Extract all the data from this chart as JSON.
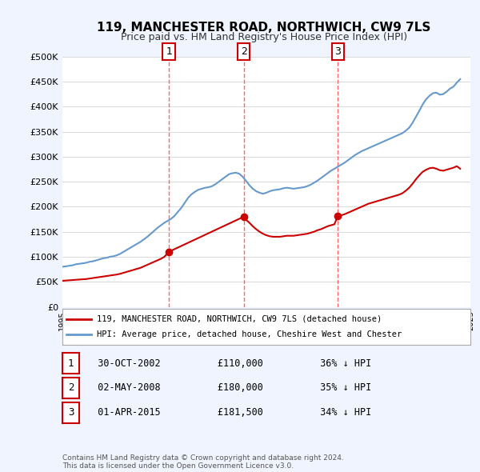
{
  "title": "119, MANCHESTER ROAD, NORTHWICH, CW9 7LS",
  "subtitle": "Price paid vs. HM Land Registry's House Price Index (HPI)",
  "footer": "Contains HM Land Registry data © Crown copyright and database right 2024.\nThis data is licensed under the Open Government Licence v3.0.",
  "legend_label_red": "119, MANCHESTER ROAD, NORTHWICH, CW9 7LS (detached house)",
  "legend_label_blue": "HPI: Average price, detached house, Cheshire West and Chester",
  "transactions": [
    {
      "num": 1,
      "date": "30-OCT-2002",
      "price": 110000,
      "pct": "36%",
      "dir": "↓",
      "label": "1"
    },
    {
      "num": 2,
      "date": "02-MAY-2008",
      "price": 180000,
      "pct": "35%",
      "dir": "↓",
      "label": "2"
    },
    {
      "num": 3,
      "date": "01-APR-2015",
      "price": 181500,
      "pct": "34%",
      "dir": "↓",
      "label": "3"
    }
  ],
  "transaction_years": [
    2002.83,
    2008.33,
    2015.25
  ],
  "transaction_prices": [
    110000,
    180000,
    181500
  ],
  "ylim": [
    0,
    500000
  ],
  "yticks": [
    0,
    50000,
    100000,
    150000,
    200000,
    250000,
    300000,
    350000,
    400000,
    450000,
    500000
  ],
  "background_color": "#f0f4ff",
  "plot_bg_color": "#ffffff",
  "red_color": "#cc0000",
  "blue_color": "#6699cc",
  "grid_color": "#cccccc",
  "dashed_color": "#ff6666",
  "hpi_years": [
    1995.0,
    1995.25,
    1995.5,
    1995.75,
    1996.0,
    1996.25,
    1996.5,
    1996.75,
    1997.0,
    1997.25,
    1997.5,
    1997.75,
    1998.0,
    1998.25,
    1998.5,
    1998.75,
    1999.0,
    1999.25,
    1999.5,
    1999.75,
    2000.0,
    2000.25,
    2000.5,
    2000.75,
    2001.0,
    2001.25,
    2001.5,
    2001.75,
    2002.0,
    2002.25,
    2002.5,
    2002.75,
    2003.0,
    2003.25,
    2003.5,
    2003.75,
    2004.0,
    2004.25,
    2004.5,
    2004.75,
    2005.0,
    2005.25,
    2005.5,
    2005.75,
    2006.0,
    2006.25,
    2006.5,
    2006.75,
    2007.0,
    2007.25,
    2007.5,
    2007.75,
    2008.0,
    2008.25,
    2008.5,
    2008.75,
    2009.0,
    2009.25,
    2009.5,
    2009.75,
    2010.0,
    2010.25,
    2010.5,
    2010.75,
    2011.0,
    2011.25,
    2011.5,
    2011.75,
    2012.0,
    2012.25,
    2012.5,
    2012.75,
    2013.0,
    2013.25,
    2013.5,
    2013.75,
    2014.0,
    2014.25,
    2014.5,
    2014.75,
    2015.0,
    2015.25,
    2015.5,
    2015.75,
    2016.0,
    2016.25,
    2016.5,
    2016.75,
    2017.0,
    2017.25,
    2017.5,
    2017.75,
    2018.0,
    2018.25,
    2018.5,
    2018.75,
    2019.0,
    2019.25,
    2019.5,
    2019.75,
    2020.0,
    2020.25,
    2020.5,
    2020.75,
    2021.0,
    2021.25,
    2021.5,
    2021.75,
    2022.0,
    2022.25,
    2022.5,
    2022.75,
    2023.0,
    2023.25,
    2023.5,
    2023.75,
    2024.0,
    2024.25
  ],
  "hpi_values": [
    80000,
    81000,
    82000,
    83000,
    85000,
    86000,
    87000,
    88000,
    90000,
    91000,
    93000,
    95000,
    97000,
    98000,
    100000,
    101000,
    103000,
    106000,
    110000,
    114000,
    118000,
    122000,
    126000,
    130000,
    135000,
    140000,
    146000,
    152000,
    158000,
    163000,
    168000,
    172000,
    176000,
    182000,
    190000,
    198000,
    208000,
    218000,
    225000,
    230000,
    234000,
    236000,
    238000,
    239000,
    241000,
    245000,
    250000,
    255000,
    260000,
    265000,
    267000,
    268000,
    266000,
    260000,
    252000,
    243000,
    236000,
    231000,
    228000,
    226000,
    228000,
    231000,
    233000,
    234000,
    235000,
    237000,
    238000,
    237000,
    236000,
    237000,
    238000,
    239000,
    241000,
    244000,
    248000,
    252000,
    257000,
    262000,
    267000,
    272000,
    276000,
    280000,
    284000,
    288000,
    293000,
    298000,
    303000,
    307000,
    311000,
    314000,
    317000,
    320000,
    323000,
    326000,
    329000,
    332000,
    335000,
    338000,
    341000,
    344000,
    347000,
    352000,
    358000,
    368000,
    380000,
    392000,
    405000,
    415000,
    422000,
    427000,
    428000,
    424000,
    425000,
    430000,
    436000,
    440000,
    448000,
    455000
  ],
  "red_years": [
    1995.0,
    1995.25,
    1995.5,
    1995.75,
    1996.0,
    1996.25,
    1996.5,
    1996.75,
    1997.0,
    1997.25,
    1997.5,
    1997.75,
    1998.0,
    1998.25,
    1998.5,
    1998.75,
    1999.0,
    1999.25,
    1999.5,
    1999.75,
    2000.0,
    2000.25,
    2000.5,
    2000.75,
    2001.0,
    2001.25,
    2001.5,
    2001.75,
    2002.0,
    2002.25,
    2002.5,
    2002.83,
    2008.33,
    2008.5,
    2008.75,
    2009.0,
    2009.25,
    2009.5,
    2009.75,
    2010.0,
    2010.25,
    2010.5,
    2010.75,
    2011.0,
    2011.25,
    2011.5,
    2011.75,
    2012.0,
    2012.25,
    2012.5,
    2012.75,
    2013.0,
    2013.25,
    2013.5,
    2013.75,
    2014.0,
    2014.25,
    2014.5,
    2014.75,
    2015.0,
    2015.25,
    2015.25,
    2015.5,
    2015.75,
    2016.0,
    2016.25,
    2016.5,
    2016.75,
    2017.0,
    2017.25,
    2017.5,
    2017.75,
    2018.0,
    2018.25,
    2018.5,
    2018.75,
    2019.0,
    2019.25,
    2019.5,
    2019.75,
    2020.0,
    2020.25,
    2020.5,
    2020.75,
    2021.0,
    2021.25,
    2021.5,
    2021.75,
    2022.0,
    2022.25,
    2022.5,
    2022.75,
    2023.0,
    2023.25,
    2023.5,
    2023.75,
    2024.0,
    2024.25
  ],
  "red_values": [
    52000,
    52500,
    53000,
    53500,
    54000,
    54500,
    55000,
    55500,
    56500,
    57500,
    58500,
    59500,
    60500,
    61500,
    62500,
    63500,
    64500,
    66000,
    68000,
    70000,
    72000,
    74000,
    76000,
    78000,
    81000,
    84000,
    87000,
    90000,
    93000,
    96000,
    100000,
    110000,
    180000,
    174000,
    168000,
    161000,
    155000,
    150000,
    146000,
    143000,
    141000,
    140000,
    140000,
    140000,
    141000,
    142000,
    142000,
    142000,
    143000,
    144000,
    145000,
    146000,
    148000,
    150000,
    153000,
    155000,
    158000,
    161000,
    163000,
    165000,
    181500,
    181500,
    183000,
    185000,
    188000,
    191000,
    194000,
    197000,
    200000,
    203000,
    206000,
    208000,
    210000,
    212000,
    214000,
    216000,
    218000,
    220000,
    222000,
    224000,
    227000,
    232000,
    238000,
    246000,
    255000,
    263000,
    270000,
    274000,
    277000,
    278000,
    276000,
    273000,
    272000,
    274000,
    276000,
    278000,
    281000,
    276000
  ]
}
